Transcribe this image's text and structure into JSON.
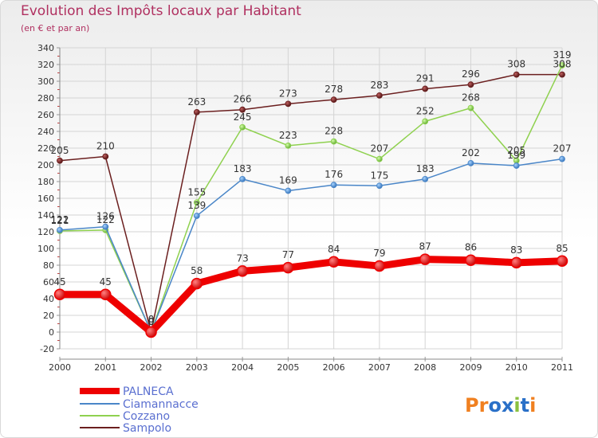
{
  "title": "Evolution des Impôts locaux par Habitant",
  "subtitle": "(en € et par an)",
  "logo": "Proxiti",
  "chart_data": {
    "type": "line",
    "title": "Evolution des Impôts locaux par Habitant",
    "subtitle": "(en € et par an)",
    "xlabel": "",
    "ylabel": "",
    "categories": [
      "2000",
      "2001",
      "2002",
      "2003",
      "2004",
      "2005",
      "2006",
      "2007",
      "2008",
      "2009",
      "2010",
      "2011"
    ],
    "ylim": [
      -20,
      340
    ],
    "yticks": [
      -20,
      0,
      20,
      40,
      60,
      80,
      100,
      120,
      140,
      160,
      180,
      200,
      220,
      240,
      260,
      280,
      300,
      320,
      340
    ],
    "grid": true,
    "legend_position": "bottom-left",
    "series": [
      {
        "name": "PALNECA",
        "color": "#ee0000",
        "values": [
          45,
          45,
          0,
          58,
          73,
          77,
          84,
          79,
          87,
          86,
          83,
          85
        ]
      },
      {
        "name": "Ciamannacce",
        "color": "#4a86c8",
        "values": [
          122,
          126,
          0,
          139,
          183,
          169,
          176,
          175,
          183,
          202,
          199,
          207
        ]
      },
      {
        "name": "Cozzano",
        "color": "#8fd14f",
        "values": [
          121,
          122,
          0,
          155,
          245,
          223,
          228,
          207,
          252,
          268,
          205,
          319
        ]
      },
      {
        "name": "Sampolo",
        "color": "#6b1f1f",
        "values": [
          205,
          210,
          0,
          263,
          266,
          273,
          278,
          283,
          291,
          296,
          308,
          308
        ]
      }
    ]
  }
}
